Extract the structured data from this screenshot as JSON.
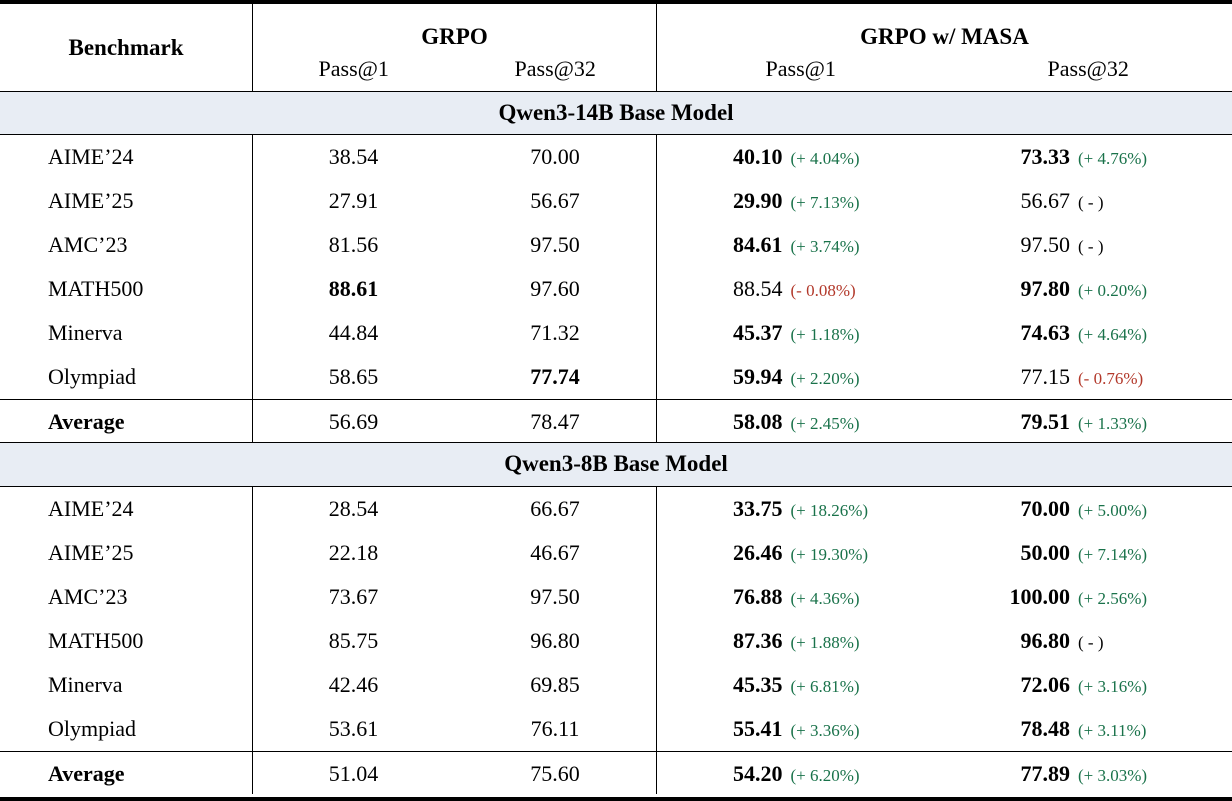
{
  "colors": {
    "positive": "#19724a",
    "negative": "#b2382a",
    "band_bg": "#e8edf4",
    "rule": "#000000"
  },
  "header": {
    "benchmark": "Benchmark",
    "grpo": "GRPO",
    "masa": "GRPO w/ MASA",
    "pass1": "Pass@1",
    "pass32": "Pass@32"
  },
  "sections": [
    {
      "title": "Qwen3-14B Base Model",
      "rows": [
        {
          "label": "AIME’24",
          "grpo_pass1": "38.54",
          "grpo_pass32": "70.00",
          "masa_pass1": "40.10",
          "masa_pass1_delta": "(+ 4.04%)",
          "masa_pass32": "73.33",
          "masa_pass32_delta": "(+ 4.76%)"
        },
        {
          "label": "AIME’25",
          "grpo_pass1": "27.91",
          "grpo_pass32": "56.67",
          "masa_pass1": "29.90",
          "masa_pass1_delta": "(+ 7.13%)",
          "masa_pass32": "56.67",
          "masa_pass32_delta": "( - )"
        },
        {
          "label": "AMC’23",
          "grpo_pass1": "81.56",
          "grpo_pass32": "97.50",
          "masa_pass1": "84.61",
          "masa_pass1_delta": "(+ 3.74%)",
          "masa_pass32": "97.50",
          "masa_pass32_delta": "( - )"
        },
        {
          "label": "MATH500",
          "grpo_pass1": "88.61",
          "grpo_pass32": "97.60",
          "masa_pass1": "88.54",
          "masa_pass1_delta": "(- 0.08%)",
          "masa_pass32": "97.80",
          "masa_pass32_delta": "(+ 0.20%)"
        },
        {
          "label": "Minerva",
          "grpo_pass1": "44.84",
          "grpo_pass32": "71.32",
          "masa_pass1": "45.37",
          "masa_pass1_delta": "(+ 1.18%)",
          "masa_pass32": "74.63",
          "masa_pass32_delta": "(+ 4.64%)"
        },
        {
          "label": "Olympiad",
          "grpo_pass1": "58.65",
          "grpo_pass32": "77.74",
          "masa_pass1": "59.94",
          "masa_pass1_delta": "(+ 2.20%)",
          "masa_pass32": "77.15",
          "masa_pass32_delta": "(- 0.76%)"
        },
        {
          "label": "Average",
          "grpo_pass1": "56.69",
          "grpo_pass32": "78.47",
          "masa_pass1": "58.08",
          "masa_pass1_delta": "(+ 2.45%)",
          "masa_pass32": "79.51",
          "masa_pass32_delta": "(+ 1.33%)"
        }
      ]
    },
    {
      "title": "Qwen3-8B Base Model",
      "rows": [
        {
          "label": "AIME’24",
          "grpo_pass1": "28.54",
          "grpo_pass32": "66.67",
          "masa_pass1": "33.75",
          "masa_pass1_delta": "(+ 18.26%)",
          "masa_pass32": "70.00",
          "masa_pass32_delta": "(+ 5.00%)"
        },
        {
          "label": "AIME’25",
          "grpo_pass1": "22.18",
          "grpo_pass32": "46.67",
          "masa_pass1": "26.46",
          "masa_pass1_delta": "(+ 19.30%)",
          "masa_pass32": "50.00",
          "masa_pass32_delta": "(+ 7.14%)"
        },
        {
          "label": "AMC’23",
          "grpo_pass1": "73.67",
          "grpo_pass32": "97.50",
          "masa_pass1": "76.88",
          "masa_pass1_delta": "(+ 4.36%)",
          "masa_pass32": "100.00",
          "masa_pass32_delta": "(+ 2.56%)"
        },
        {
          "label": "MATH500",
          "grpo_pass1": "85.75",
          "grpo_pass32": "96.80",
          "masa_pass1": "87.36",
          "masa_pass1_delta": "(+ 1.88%)",
          "masa_pass32": "96.80",
          "masa_pass32_delta": "( - )"
        },
        {
          "label": "Minerva",
          "grpo_pass1": "42.46",
          "grpo_pass32": "69.85",
          "masa_pass1": "45.35",
          "masa_pass1_delta": "(+ 6.81%)",
          "masa_pass32": "72.06",
          "masa_pass32_delta": "(+ 3.16%)"
        },
        {
          "label": "Olympiad",
          "grpo_pass1": "53.61",
          "grpo_pass32": "76.11",
          "masa_pass1": "55.41",
          "masa_pass1_delta": "(+ 3.36%)",
          "masa_pass32": "78.48",
          "masa_pass32_delta": "(+ 3.11%)"
        },
        {
          "label": "Average",
          "grpo_pass1": "51.04",
          "grpo_pass32": "75.60",
          "masa_pass1": "54.20",
          "masa_pass1_delta": "(+ 6.20%)",
          "masa_pass32": "77.89",
          "masa_pass32_delta": "(+ 3.03%)"
        }
      ]
    }
  ]
}
